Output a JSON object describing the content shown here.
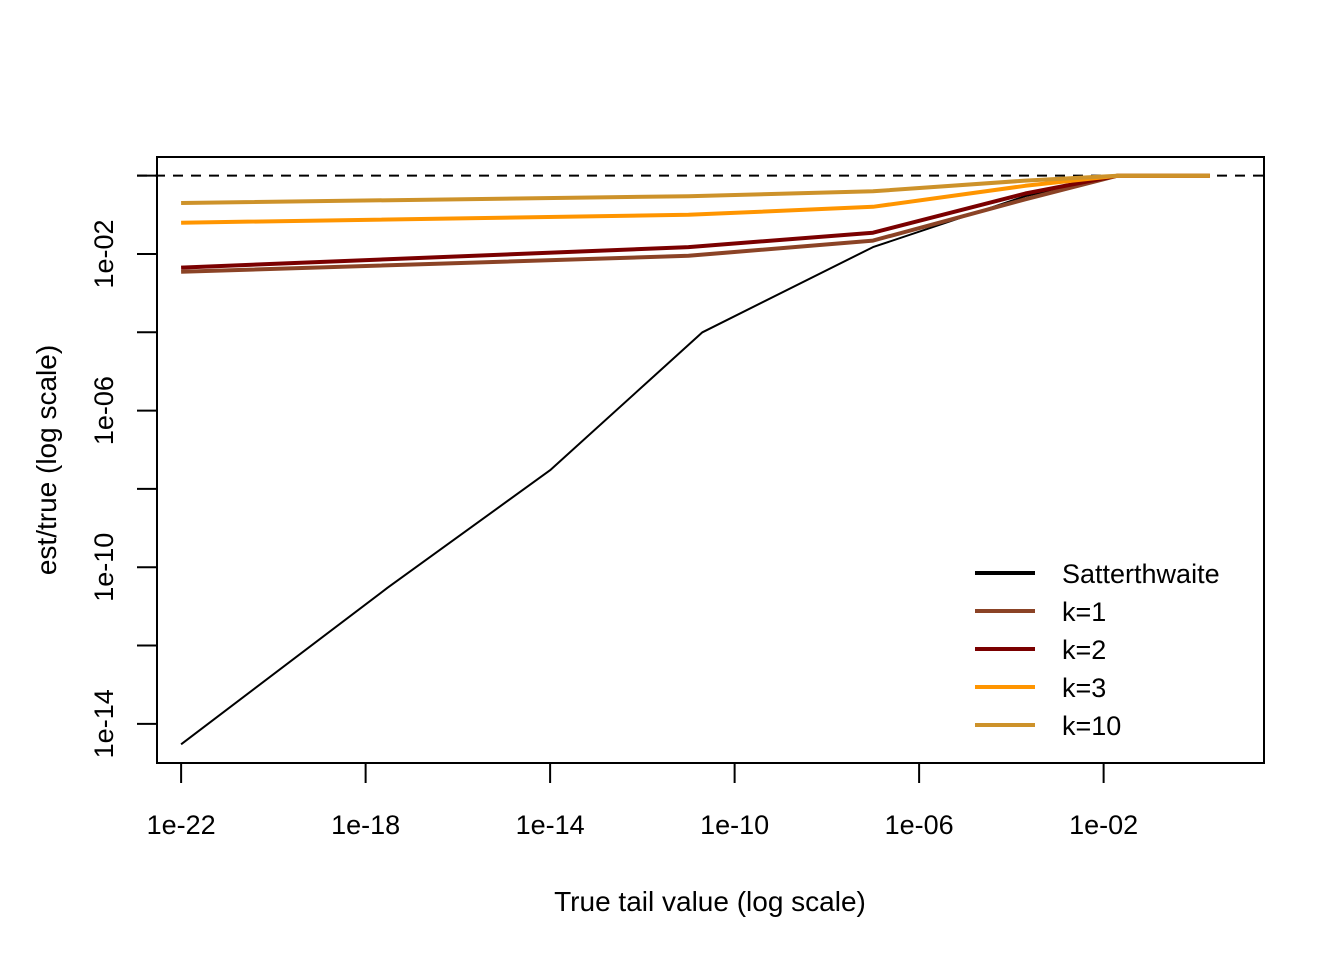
{
  "chart_data": {
    "type": "line",
    "title": "",
    "xlabel": "True tail value (log scale)",
    "ylabel": "est/true (log scale)",
    "x_scale": "log",
    "y_scale": "log",
    "xlim": [
      3e-23,
      30.0
    ],
    "ylim": [
      1e-15,
      3.0
    ],
    "x_ticks": [
      {
        "value": 1e-22,
        "label": "1e-22"
      },
      {
        "value": 1e-18,
        "label": "1e-18"
      },
      {
        "value": 1e-14,
        "label": "1e-14"
      },
      {
        "value": 1e-10,
        "label": "1e-10"
      },
      {
        "value": 1e-06,
        "label": "1e-06"
      },
      {
        "value": 0.01,
        "label": "1e-02"
      }
    ],
    "y_ticks": [
      {
        "value": 1e-14,
        "label": "1e-14"
      },
      {
        "value": 1e-12,
        "label": ""
      },
      {
        "value": 1e-10,
        "label": "1e-10"
      },
      {
        "value": 1e-08,
        "label": ""
      },
      {
        "value": 1e-06,
        "label": "1e-06"
      },
      {
        "value": 0.0001,
        "label": ""
      },
      {
        "value": 0.01,
        "label": "1e-02"
      },
      {
        "value": 1.0,
        "label": ""
      }
    ],
    "reference_line": {
      "y": 1,
      "style": "dashed",
      "color": "#000000"
    },
    "grid": false,
    "legend_position": "bottom-right",
    "series": [
      {
        "name": "Satterthwaite",
        "color": "#000000",
        "width": 2,
        "x": [
          1e-22,
          3e-18,
          1e-14,
          2e-11,
          1e-07,
          0.0002,
          0.02,
          2
        ],
        "y": [
          3e-15,
          3e-11,
          3e-08,
          0.0001,
          0.015,
          0.3,
          1,
          1
        ]
      },
      {
        "name": "k=1",
        "color": "#8B4326",
        "width": 4,
        "x": [
          1e-22,
          1e-11,
          1e-07,
          0.0002,
          0.02,
          2
        ],
        "y": [
          0.0035,
          0.009,
          0.022,
          0.25,
          1,
          1
        ]
      },
      {
        "name": "k=2",
        "color": "#7A0000",
        "width": 4,
        "x": [
          1e-22,
          1e-11,
          1e-07,
          0.0002,
          0.02,
          2
        ],
        "y": [
          0.0045,
          0.015,
          0.035,
          0.35,
          1,
          1
        ]
      },
      {
        "name": "k=3",
        "color": "#FF9500",
        "width": 4,
        "x": [
          1e-22,
          1e-11,
          1e-07,
          0.0002,
          0.02,
          2
        ],
        "y": [
          0.063,
          0.1,
          0.16,
          0.55,
          1,
          1
        ]
      },
      {
        "name": "k=10",
        "color": "#CD922A",
        "width": 4,
        "x": [
          1e-22,
          1e-11,
          1e-07,
          0.0002,
          0.02,
          2
        ],
        "y": [
          0.2,
          0.3,
          0.4,
          0.75,
          1,
          1
        ]
      }
    ]
  }
}
